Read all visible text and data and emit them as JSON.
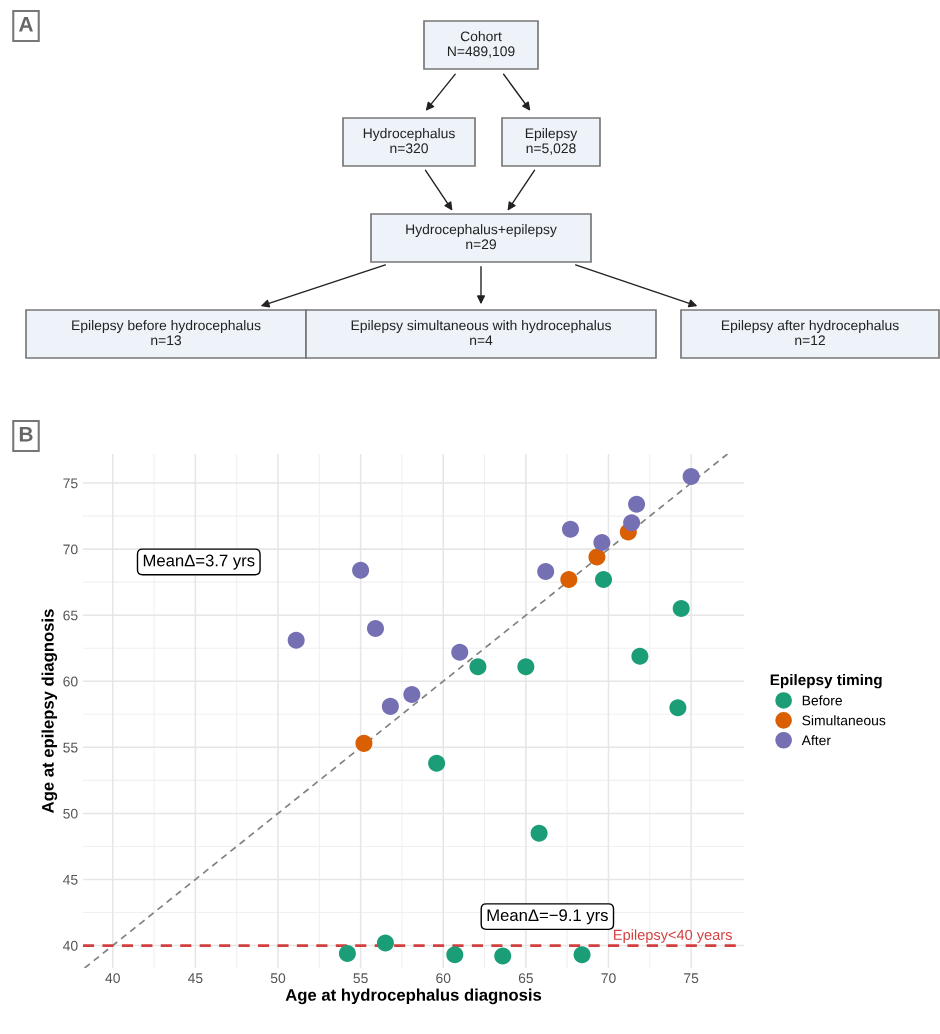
{
  "chart_data": [
    {
      "type": "other",
      "annotations": [
        "A",
        "Cohort\nN=489,109",
        "Hydrocephalus\nn=320",
        "Epilepsy\nn=5,028",
        "Hydrocephalus+epilepsy\nn=29",
        "Epilepsy before hydrocephalus\nn=13",
        "Epilepsy simultaneous with hydrocephalus\nn=4",
        "Epilepsy after hydrocephalus\nn=12"
      ]
    },
    {
      "type": "scatter",
      "xlabel": "Age at hydrocephalus diagnosis",
      "ylabel": "Age at epilepsy diagnosis",
      "legend_title": "Epilepsy timing",
      "legend": "right",
      "grid": true,
      "marker": "circle",
      "xlim": [
        38.2,
        78.2
      ],
      "xticks": [
        40,
        45,
        50,
        55,
        60,
        65,
        70,
        75
      ],
      "ylim": [
        38.3,
        77.2
      ],
      "yticks": [
        40,
        45,
        50,
        55,
        60,
        65,
        70,
        75
      ],
      "series": [
        {
          "name": "Before",
          "color": "#1b9e77",
          "x": [
            59.6,
            54.2,
            56.5,
            60.7,
            69.7,
            74.4,
            62.1,
            65.0,
            71.9,
            74.2,
            65.8,
            63.6,
            68.4
          ],
          "values": [
            53.8,
            39.4,
            40.2,
            39.3,
            67.7,
            65.5,
            61.1,
            61.1,
            61.9,
            58.0,
            48.5,
            39.2,
            39.3
          ]
        },
        {
          "name": "Simultaneous",
          "color": "#d95f02",
          "x": [
            55.2,
            71.2,
            69.3,
            67.6
          ],
          "values": [
            55.3,
            71.3,
            69.4,
            67.7
          ]
        },
        {
          "name": "After",
          "color": "#7570b3",
          "x": [
            55.0,
            51.1,
            55.9,
            56.8,
            58.1,
            75.0,
            71.7,
            71.4,
            67.7,
            69.6,
            66.2,
            61.0
          ],
          "values": [
            68.4,
            63.1,
            64.0,
            58.1,
            59.0,
            75.5,
            73.4,
            72.0,
            71.5,
            70.5,
            68.3,
            62.2
          ]
        },
        {
          "type": "line",
          "color": "#808080",
          "line_style": "dashed",
          "marker": "none",
          "x": [
            38.3,
            77.2
          ],
          "values": [
            38.3,
            77.2
          ]
        }
      ],
      "ref_lines": [
        {
          "axis": "y",
          "value": 40,
          "label": "Epilepsy<40 years",
          "color": "#d33f3f",
          "line_style": "dashed"
        }
      ],
      "annotations": [
        "B",
        "MeanΔ=3.7 yrs",
        "MeanΔ=−9.1 yrs"
      ]
    }
  ]
}
